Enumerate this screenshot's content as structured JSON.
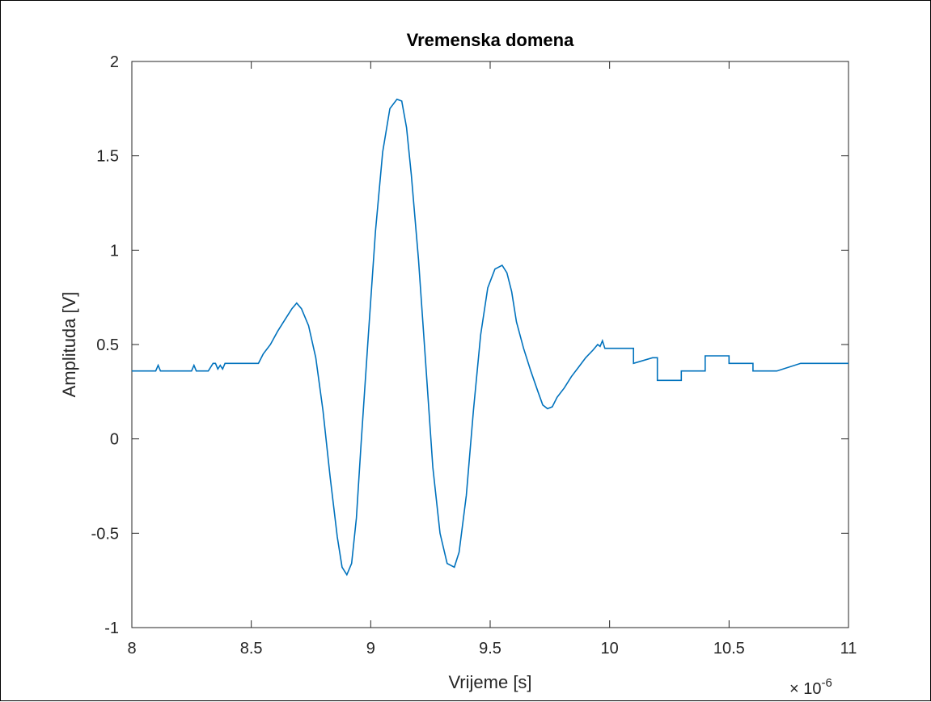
{
  "chart_data": {
    "type": "line",
    "title": "Vremenska domena",
    "xlabel": "Vrijeme [s]",
    "ylabel": "Amplituda [V]",
    "x_exponent_label": "× 10",
    "x_exponent_power": "-6",
    "xlim": [
      8,
      11
    ],
    "ylim": [
      -1,
      2
    ],
    "x_ticks": [
      8,
      8.5,
      9,
      9.5,
      10,
      10.5,
      11
    ],
    "x_tick_labels": [
      "8",
      "8.5",
      "9",
      "9.5",
      "10",
      "10.5",
      "11"
    ],
    "y_ticks": [
      -1,
      -0.5,
      0,
      0.5,
      1,
      1.5,
      2
    ],
    "y_tick_labels": [
      "-1",
      "-0.5",
      "0",
      "0.5",
      "1",
      "1.5",
      "2"
    ],
    "grid": false,
    "line_color": "#0072BD",
    "series": [
      {
        "x": [
          8.0,
          8.1,
          8.11,
          8.12,
          8.25,
          8.26,
          8.27,
          8.32,
          8.34,
          8.35,
          8.36,
          8.37,
          8.38,
          8.39,
          8.4,
          8.53,
          8.55,
          8.58,
          8.61,
          8.64,
          8.67,
          8.69,
          8.71,
          8.74,
          8.77,
          8.8,
          8.83,
          8.86,
          8.88,
          8.9,
          8.92,
          8.94,
          8.96,
          8.99,
          9.02,
          9.05,
          9.08,
          9.11,
          9.13,
          9.15,
          9.17,
          9.2,
          9.23,
          9.26,
          9.29,
          9.32,
          9.35,
          9.37,
          9.4,
          9.43,
          9.46,
          9.49,
          9.52,
          9.55,
          9.57,
          9.59,
          9.61,
          9.64,
          9.67,
          9.7,
          9.72,
          9.74,
          9.76,
          9.78,
          9.81,
          9.84,
          9.87,
          9.9,
          9.93,
          9.95,
          9.96,
          9.97,
          9.98,
          10.0,
          10.1,
          10.1,
          10.18,
          10.2,
          10.2,
          10.3,
          10.3,
          10.4,
          10.4,
          10.5,
          10.5,
          10.6,
          10.6,
          10.7,
          10.8,
          10.8,
          10.9,
          11.0
        ],
        "y": [
          0.36,
          0.36,
          0.39,
          0.36,
          0.36,
          0.39,
          0.36,
          0.36,
          0.4,
          0.4,
          0.37,
          0.39,
          0.37,
          0.4,
          0.4,
          0.4,
          0.45,
          0.5,
          0.57,
          0.63,
          0.69,
          0.72,
          0.69,
          0.6,
          0.43,
          0.15,
          -0.2,
          -0.52,
          -0.68,
          -0.72,
          -0.66,
          -0.42,
          -0.02,
          0.55,
          1.1,
          1.52,
          1.75,
          1.8,
          1.79,
          1.65,
          1.4,
          0.95,
          0.4,
          -0.15,
          -0.5,
          -0.66,
          -0.68,
          -0.6,
          -0.3,
          0.15,
          0.55,
          0.8,
          0.9,
          0.92,
          0.88,
          0.78,
          0.62,
          0.48,
          0.36,
          0.25,
          0.18,
          0.16,
          0.17,
          0.22,
          0.27,
          0.33,
          0.38,
          0.43,
          0.47,
          0.5,
          0.49,
          0.52,
          0.48,
          0.48,
          0.48,
          0.4,
          0.43,
          0.43,
          0.31,
          0.31,
          0.36,
          0.36,
          0.44,
          0.44,
          0.4,
          0.4,
          0.36,
          0.36,
          0.4,
          0.4,
          0.4,
          0.4
        ]
      }
    ]
  }
}
